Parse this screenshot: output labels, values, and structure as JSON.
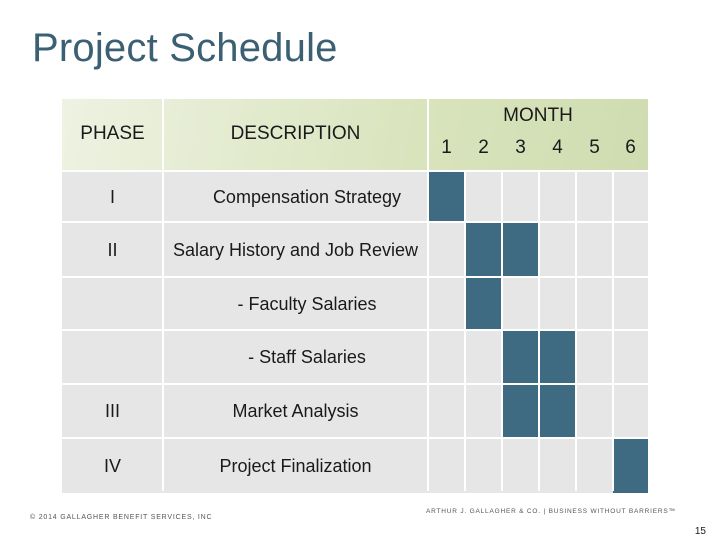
{
  "title": "Project Schedule",
  "headers": {
    "phase": "PHASE",
    "description": "DESCRIPTION",
    "month": "MONTH",
    "months": [
      "1",
      "2",
      "3",
      "4",
      "5",
      "6"
    ]
  },
  "rows": [
    {
      "phase": "I",
      "description": "Compensation Strategy",
      "active_months": [
        1
      ]
    },
    {
      "phase": "II",
      "description": "Salary History and Job Review",
      "active_months": [
        2,
        3
      ]
    },
    {
      "phase": "",
      "description": "- Faculty Salaries",
      "active_months": [
        2
      ]
    },
    {
      "phase": "",
      "description": "- Staff Salaries",
      "active_months": [
        3,
        4
      ]
    },
    {
      "phase": "III",
      "description": "Market Analysis",
      "active_months": [
        3,
        4
      ]
    },
    {
      "phase": "IV",
      "description": "Project Finalization",
      "active_months": [
        6
      ]
    }
  ],
  "colors": {
    "title": "#3b5f73",
    "header_bg": "#d9e4bd",
    "row_bg": "#e6e6e6",
    "active_fill": "#3e6b82"
  },
  "footer": {
    "copyright": "© 2014 GALLAGHER BENEFIT SERVICES, INC",
    "tagline": "ARTHUR J. GALLAGHER & CO. | BUSINESS WITHOUT BARRIERS™",
    "page_number": "15"
  }
}
